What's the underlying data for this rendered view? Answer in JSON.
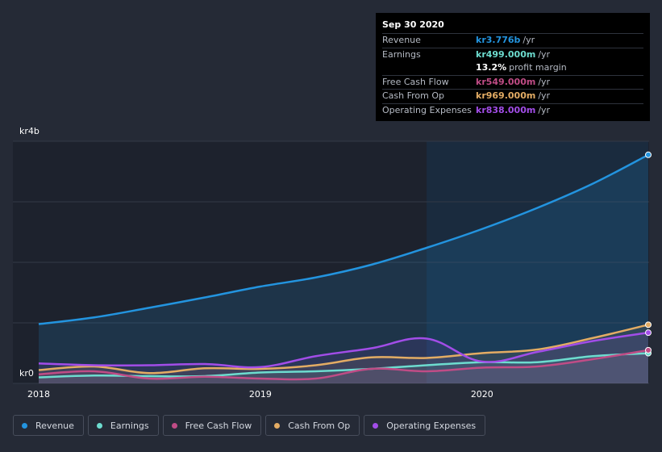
{
  "chart_data": {
    "type": "line",
    "y_axis": {
      "top_label": "kr4b",
      "bottom_label": "kr0",
      "ylim": [
        0,
        4.0
      ],
      "unit": "kr billions"
    },
    "x_ticks": [
      {
        "label": "2018",
        "value": 2018.0
      },
      {
        "label": "2019",
        "value": 2019.0
      },
      {
        "label": "2020",
        "value": 2020.0
      }
    ],
    "xlim": [
      2018.0,
      2020.75
    ],
    "highlight_from": 2019.75,
    "grid": true,
    "legend_position": "bottom",
    "x": [
      2018.0,
      2018.25,
      2018.5,
      2018.75,
      2019.0,
      2019.25,
      2019.5,
      2019.75,
      2020.0,
      2020.25,
      2020.5,
      2020.75
    ],
    "series": [
      {
        "name": "Revenue",
        "color": "#2394df",
        "values": [
          0.98,
          1.09,
          1.25,
          1.42,
          1.6,
          1.75,
          1.96,
          2.24,
          2.55,
          2.9,
          3.3,
          3.776
        ]
      },
      {
        "name": "Earnings",
        "color": "#6ddccf",
        "values": [
          0.1,
          0.13,
          0.12,
          0.12,
          0.18,
          0.2,
          0.24,
          0.3,
          0.35,
          0.35,
          0.45,
          0.499
        ]
      },
      {
        "name": "Free Cash Flow",
        "color": "#c04c86",
        "values": [
          0.15,
          0.2,
          0.08,
          0.11,
          0.08,
          0.08,
          0.24,
          0.2,
          0.26,
          0.28,
          0.4,
          0.549
        ]
      },
      {
        "name": "Cash From Op",
        "color": "#e3ac64",
        "values": [
          0.22,
          0.28,
          0.17,
          0.25,
          0.24,
          0.3,
          0.43,
          0.42,
          0.5,
          0.56,
          0.75,
          0.969
        ]
      },
      {
        "name": "Operating Expenses",
        "color": "#a24de8",
        "values": [
          0.33,
          0.3,
          0.3,
          0.32,
          0.27,
          0.45,
          0.58,
          0.74,
          0.36,
          0.52,
          0.7,
          0.838
        ]
      }
    ]
  },
  "tooltip": {
    "date": "Sep 30 2020",
    "rows": [
      {
        "label": "Revenue",
        "value": "kr3.776b",
        "unit": "/yr",
        "color": "#2394df"
      },
      {
        "label": "Earnings",
        "value": "kr499.000m",
        "unit": "/yr",
        "color": "#6ddccf"
      },
      {
        "label": "Free Cash Flow",
        "value": "kr549.000m",
        "unit": "/yr",
        "color": "#c04c86"
      },
      {
        "label": "Cash From Op",
        "value": "kr969.000m",
        "unit": "/yr",
        "color": "#e3ac64"
      },
      {
        "label": "Operating Expenses",
        "value": "kr838.000m",
        "unit": "/yr",
        "color": "#a24de8"
      }
    ],
    "margin": {
      "value": "13.2%",
      "text": "profit margin"
    }
  },
  "legend": [
    {
      "label": "Revenue",
      "color": "#2394df"
    },
    {
      "label": "Earnings",
      "color": "#6ddccf"
    },
    {
      "label": "Free Cash Flow",
      "color": "#c04c86"
    },
    {
      "label": "Cash From Op",
      "color": "#e3ac64"
    },
    {
      "label": "Operating Expenses",
      "color": "#a24de8"
    }
  ]
}
